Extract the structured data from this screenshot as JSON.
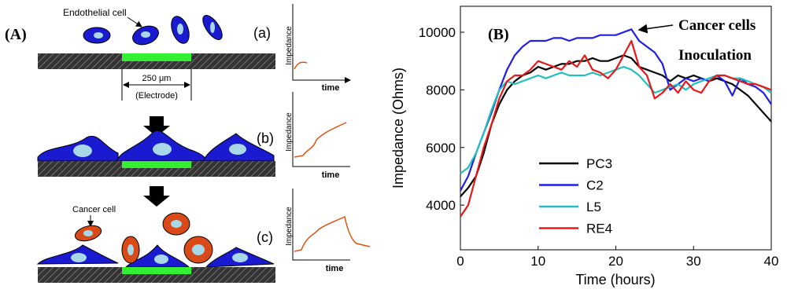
{
  "panel_a": {
    "label": "(A)",
    "endothelial_label": "Endothelial cell",
    "cancer_label": "Cancer cell",
    "width_label": "250 μm",
    "electrode_label": "(Electrode)",
    "steps": [
      "(a)",
      "(b)",
      "(c)"
    ],
    "mini_y_label": "Impedance",
    "mini_x_label": "time"
  },
  "chart_data": {
    "type": "line",
    "panel_label": "(B)",
    "annotation": [
      "Cancer cells",
      "Inoculation"
    ],
    "x_label": "Time (hours)",
    "y_label": "Impedance (Ohms)",
    "x": [
      0,
      1,
      2,
      3,
      4,
      5,
      6,
      7,
      8,
      9,
      10,
      11,
      12,
      13,
      14,
      15,
      16,
      17,
      18,
      19,
      20,
      21,
      22,
      23,
      24,
      25,
      26,
      27,
      28,
      29,
      30,
      31,
      32,
      33,
      34,
      35,
      36,
      37,
      38,
      39,
      40
    ],
    "series": [
      {
        "name": "PC3",
        "color": "#000000",
        "values": [
          4300,
          4600,
          5000,
          5800,
          6800,
          7500,
          8000,
          8300,
          8500,
          8600,
          8800,
          8700,
          8800,
          8900,
          8900,
          9000,
          9000,
          9100,
          9000,
          9000,
          9100,
          9200,
          9100,
          8800,
          8700,
          8600,
          8500,
          8300,
          8500,
          8400,
          8500,
          8400,
          8300,
          8400,
          8300,
          8200,
          8000,
          7800,
          7500,
          7200,
          6900
        ]
      },
      {
        "name": "C2",
        "color": "#1f1fe6",
        "values": [
          4500,
          5000,
          5800,
          6500,
          7200,
          8000,
          8700,
          9200,
          9500,
          9700,
          9700,
          9700,
          9800,
          9800,
          9700,
          9800,
          9800,
          9800,
          9900,
          9900,
          9900,
          10000,
          10100,
          9700,
          9500,
          9300,
          8900,
          8000,
          8200,
          8400,
          8300,
          8400,
          8300,
          8500,
          8300,
          7800,
          8400,
          8200,
          8100,
          7900,
          7500
        ]
      },
      {
        "name": "L5",
        "color": "#20c0c0",
        "values": [
          5100,
          5300,
          5800,
          6500,
          7300,
          8000,
          8300,
          8200,
          8300,
          8400,
          8500,
          8400,
          8500,
          8600,
          8500,
          8500,
          8500,
          8600,
          8500,
          8600,
          8700,
          8800,
          8700,
          8500,
          8200,
          7900,
          8000,
          8100,
          8200,
          8000,
          8200,
          8300,
          8400,
          8500,
          8500,
          8400,
          8400,
          8300,
          8200,
          8100,
          7900
        ]
      },
      {
        "name": "RE4",
        "color": "#e81818",
        "values": [
          3600,
          4000,
          5000,
          6000,
          6800,
          7700,
          8300,
          8500,
          8500,
          8700,
          9000,
          8900,
          8800,
          8700,
          9000,
          8800,
          9200,
          8700,
          8600,
          8400,
          8700,
          9200,
          9700,
          8800,
          8500,
          7700,
          7900,
          8200,
          7900,
          8300,
          8000,
          7900,
          8300,
          8500,
          8500,
          8400,
          8300,
          8200,
          8200,
          8100,
          8000
        ]
      }
    ],
    "xlim": [
      0,
      40
    ],
    "ylim": [
      2450,
      10900
    ],
    "xticks": [
      0,
      10,
      20,
      30,
      40
    ],
    "yticks": [
      4000,
      6000,
      8000,
      10000
    ]
  }
}
